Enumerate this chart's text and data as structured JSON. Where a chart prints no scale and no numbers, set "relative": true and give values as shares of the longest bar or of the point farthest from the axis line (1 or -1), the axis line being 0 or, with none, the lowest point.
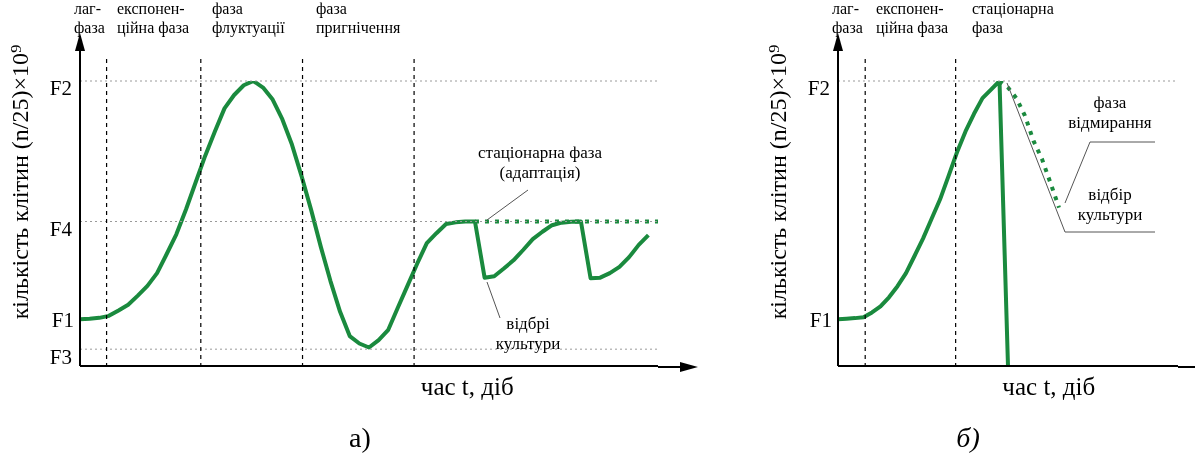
{
  "chart_data": [
    {
      "type": "line",
      "xlabel": "час t, діб",
      "ylabel": "кількість клітин (n/25)×10⁹",
      "marker": "none",
      "categories": [
        null,
        null,
        null,
        null,
        null,
        null,
        null,
        null,
        null,
        null,
        null,
        null,
        null,
        null,
        null,
        null,
        null,
        null,
        null,
        null,
        null,
        null,
        null,
        null,
        null,
        null,
        null,
        null,
        null,
        null,
        null,
        null,
        null,
        null,
        null,
        null,
        null,
        null,
        null,
        null,
        null,
        null,
        null,
        null,
        null,
        null,
        null,
        null,
        null,
        null,
        null,
        null,
        null,
        null,
        null,
        null,
        null,
        null,
        null,
        null,
        null
      ],
      "relative": true,
      "series": [
        {
          "color": "#1a8a3e",
          "values": [
            0.164,
            0.166,
            0.169,
            0.176,
            0.195,
            0.215,
            0.247,
            0.281,
            0.326,
            0.393,
            0.462,
            0.549,
            0.644,
            0.738,
            0.823,
            0.904,
            0.951,
            0.985,
            1,
            0.977,
            0.935,
            0.866,
            0.777,
            0.666,
            0.547,
            0.418,
            0.298,
            0.19,
            0.105,
            0.079,
            0.065,
            0.091,
            0.127,
            0.205,
            0.282,
            0.359,
            0.431,
            0.466,
            0.498,
            0.504,
            0.507,
            0.507,
            0.31,
            0.315,
            0.342,
            0.371,
            0.407,
            0.445,
            0.471,
            0.494,
            0.503,
            0.506,
            0.507,
            0.308,
            0.31,
            0.326,
            0.348,
            0.382,
            0.425,
            0.459,
            null
          ]
        },
        {
          "color": "#1a8a3e",
          "line_style": "dotted",
          "values": [
            null,
            null,
            null,
            null,
            null,
            null,
            null,
            null,
            null,
            null,
            null,
            null,
            null,
            null,
            null,
            null,
            null,
            null,
            null,
            null,
            null,
            null,
            null,
            null,
            null,
            null,
            null,
            null,
            null,
            null,
            null,
            null,
            null,
            null,
            null,
            null,
            null,
            null,
            null,
            null,
            null,
            0.507,
            0.507,
            0.507,
            0.507,
            0.507,
            0.507,
            0.507,
            0.507,
            0.507,
            0.507,
            0.507,
            0.507,
            0.507,
            0.507,
            0.507,
            0.507,
            0.507,
            0.507,
            0.507,
            0.507
          ]
        }
      ],
      "ref_lines": [
        {
          "axis": "y",
          "value": 1,
          "label": "F2",
          "color": "#9a9a9a",
          "line_style": "dotted"
        },
        {
          "axis": "y",
          "value": 0.507,
          "label": "F4",
          "color": "#9a9a9a",
          "line_style": "dotted"
        },
        {
          "axis": "y",
          "value": 0.059,
          "label": "F3",
          "color": "#9a9a9a",
          "line_style": "dotted"
        }
      ],
      "annotations": [
        "лаг-\nфаза",
        "експонен-\nційна фаза",
        "фаза\nфлуктуації",
        "фаза\nпригнічення",
        "стаціонарна фаза\n(адаптація)",
        "відбрі\nкультури",
        "а)",
        "F1"
      ]
    },
    {
      "type": "line",
      "xlabel": "час t, діб",
      "ylabel": "кількість клітин (n/25)×10⁹",
      "marker": "none",
      "categories": [
        null,
        null,
        null,
        null,
        null,
        null,
        null,
        null,
        null,
        null,
        null,
        null,
        null,
        null,
        null,
        null,
        null,
        null,
        null,
        null,
        null,
        null,
        null,
        null,
        null,
        null,
        null,
        null,
        null,
        null,
        null,
        null,
        null,
        null,
        null,
        null,
        null,
        null,
        null,
        null,
        null
      ],
      "relative": true,
      "series": [
        {
          "color": "#1a8a3e",
          "values": [
            0.164,
            0.166,
            0.168,
            0.171,
            0.188,
            0.209,
            0.241,
            0.28,
            0.326,
            0.386,
            0.447,
            0.516,
            0.584,
            0.666,
            0.75,
            0.823,
            0.885,
            0.94,
            0.97,
            1,
            0,
            null,
            null,
            null,
            null,
            null,
            null,
            null,
            null,
            null,
            null,
            null,
            null,
            null,
            null,
            null,
            null,
            null,
            null,
            null,
            null
          ]
        },
        {
          "color": "#1a8a3e",
          "line_style": "dotted",
          "values": [
            null,
            null,
            null,
            null,
            null,
            null,
            null,
            null,
            null,
            null,
            null,
            null,
            null,
            null,
            null,
            null,
            null,
            null,
            null,
            1,
            0.977,
            0.939,
            0.878,
            0.79,
            0.726,
            0.642,
            0.556,
            null,
            null,
            null,
            null,
            null,
            null,
            null,
            null,
            null,
            null,
            null,
            null,
            null,
            null
          ]
        }
      ],
      "ref_lines": [
        {
          "axis": "y",
          "value": 1,
          "label": "F2",
          "color": "#9a9a9a",
          "line_style": "dotted"
        }
      ],
      "annotations": [
        "лаг-\nфаза",
        "експонен-\nційна фаза",
        "стаціонарна\nфаза",
        "фаза\nвідмирання",
        "відбір\nкультури",
        "б)",
        "F1"
      ]
    }
  ]
}
